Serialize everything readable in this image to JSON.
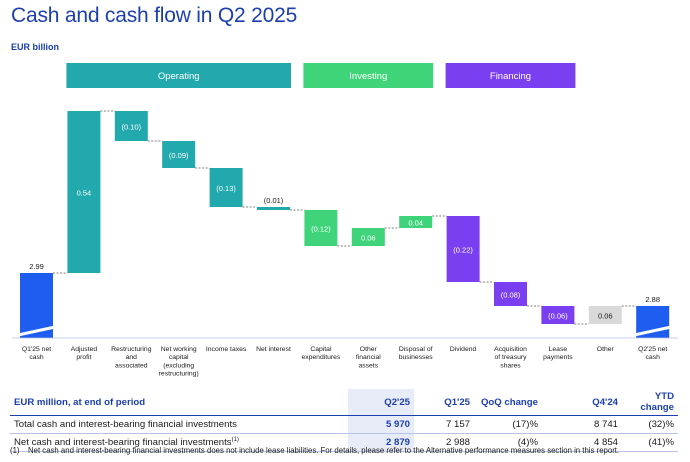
{
  "title": "Cash and cash flow in Q2 2025",
  "unit_label": "EUR billion",
  "colors": {
    "net_cash": "#1f5cf0",
    "operating": "#22a9ad",
    "investing": "#3fd47a",
    "financing": "#7b3ff2",
    "other": "#d9d9d9",
    "connector": "#555555"
  },
  "chart_data": {
    "type": "waterfall",
    "title": "Cash and cash flow in Q2 2025",
    "ylabel": "EUR billion",
    "y_axis_broken": true,
    "groups": [
      {
        "label": "Operating",
        "color_key": "operating"
      },
      {
        "label": "Investing",
        "color_key": "investing"
      },
      {
        "label": "Financing",
        "color_key": "financing"
      }
    ],
    "steps": [
      {
        "label": "Q1'25 net cash",
        "value": 2.99,
        "kind": "total",
        "display": "2.99",
        "color_key": "net_cash"
      },
      {
        "label": "Adjusted profit",
        "value": 0.54,
        "kind": "delta",
        "display": "0.54",
        "color_key": "operating"
      },
      {
        "label": "Restructuring and associated",
        "value": -0.1,
        "kind": "delta",
        "display": "(0.10)",
        "color_key": "operating"
      },
      {
        "label": "Net working capital (excluding restructuring)",
        "value": -0.09,
        "kind": "delta",
        "display": "(0.09)",
        "color_key": "operating"
      },
      {
        "label": "Income taxes",
        "value": -0.13,
        "kind": "delta",
        "display": "(0.13)",
        "color_key": "operating"
      },
      {
        "label": "Net interest",
        "value": -0.01,
        "kind": "delta",
        "display": "(0.01)",
        "color_key": "operating"
      },
      {
        "label": "Capital expenditures",
        "value": -0.12,
        "kind": "delta",
        "display": "(0.12)",
        "color_key": "investing"
      },
      {
        "label": "Other financial assets",
        "value": 0.06,
        "kind": "delta",
        "display": "0.06",
        "color_key": "investing"
      },
      {
        "label": "Disposal of businesses",
        "value": 0.04,
        "kind": "delta",
        "display": "0.04",
        "color_key": "investing"
      },
      {
        "label": "Dividend",
        "value": -0.22,
        "kind": "delta",
        "display": "(0.22)",
        "color_key": "financing"
      },
      {
        "label": "Acquisition of treasury shares",
        "value": -0.08,
        "kind": "delta",
        "display": "(0.08)",
        "color_key": "financing"
      },
      {
        "label": "Lease payments",
        "value": -0.06,
        "kind": "delta",
        "display": "(0.06)",
        "color_key": "financing"
      },
      {
        "label": "Other",
        "value": 0.06,
        "kind": "delta",
        "display": "0.06",
        "color_key": "other"
      },
      {
        "label": "Q2'25 net cash",
        "value": 2.88,
        "kind": "total",
        "display": "2.88",
        "color_key": "net_cash"
      }
    ]
  },
  "table": {
    "columns": [
      "EUR million, at end of period",
      "Q2'25",
      "Q1'25",
      "QoQ change",
      "Q4'24",
      "YTD change"
    ],
    "rows": [
      {
        "label": "Total cash and interest-bearing financial investments",
        "footnote": "",
        "cells": [
          "5 970",
          "7 157",
          "(17)%",
          "8 741",
          "(32)%"
        ]
      },
      {
        "label": "Net cash and interest-bearing financial investments",
        "footnote": "(1)",
        "cells": [
          "2 879",
          "2 988",
          "(4)%",
          "4 854",
          "(41)%"
        ]
      }
    ]
  },
  "footnote": {
    "marker": "(1)",
    "text": "Net cash and interest-bearing financial investments does not include lease liabilities. For details, please refer to the Alternative performance measures section in this report."
  }
}
